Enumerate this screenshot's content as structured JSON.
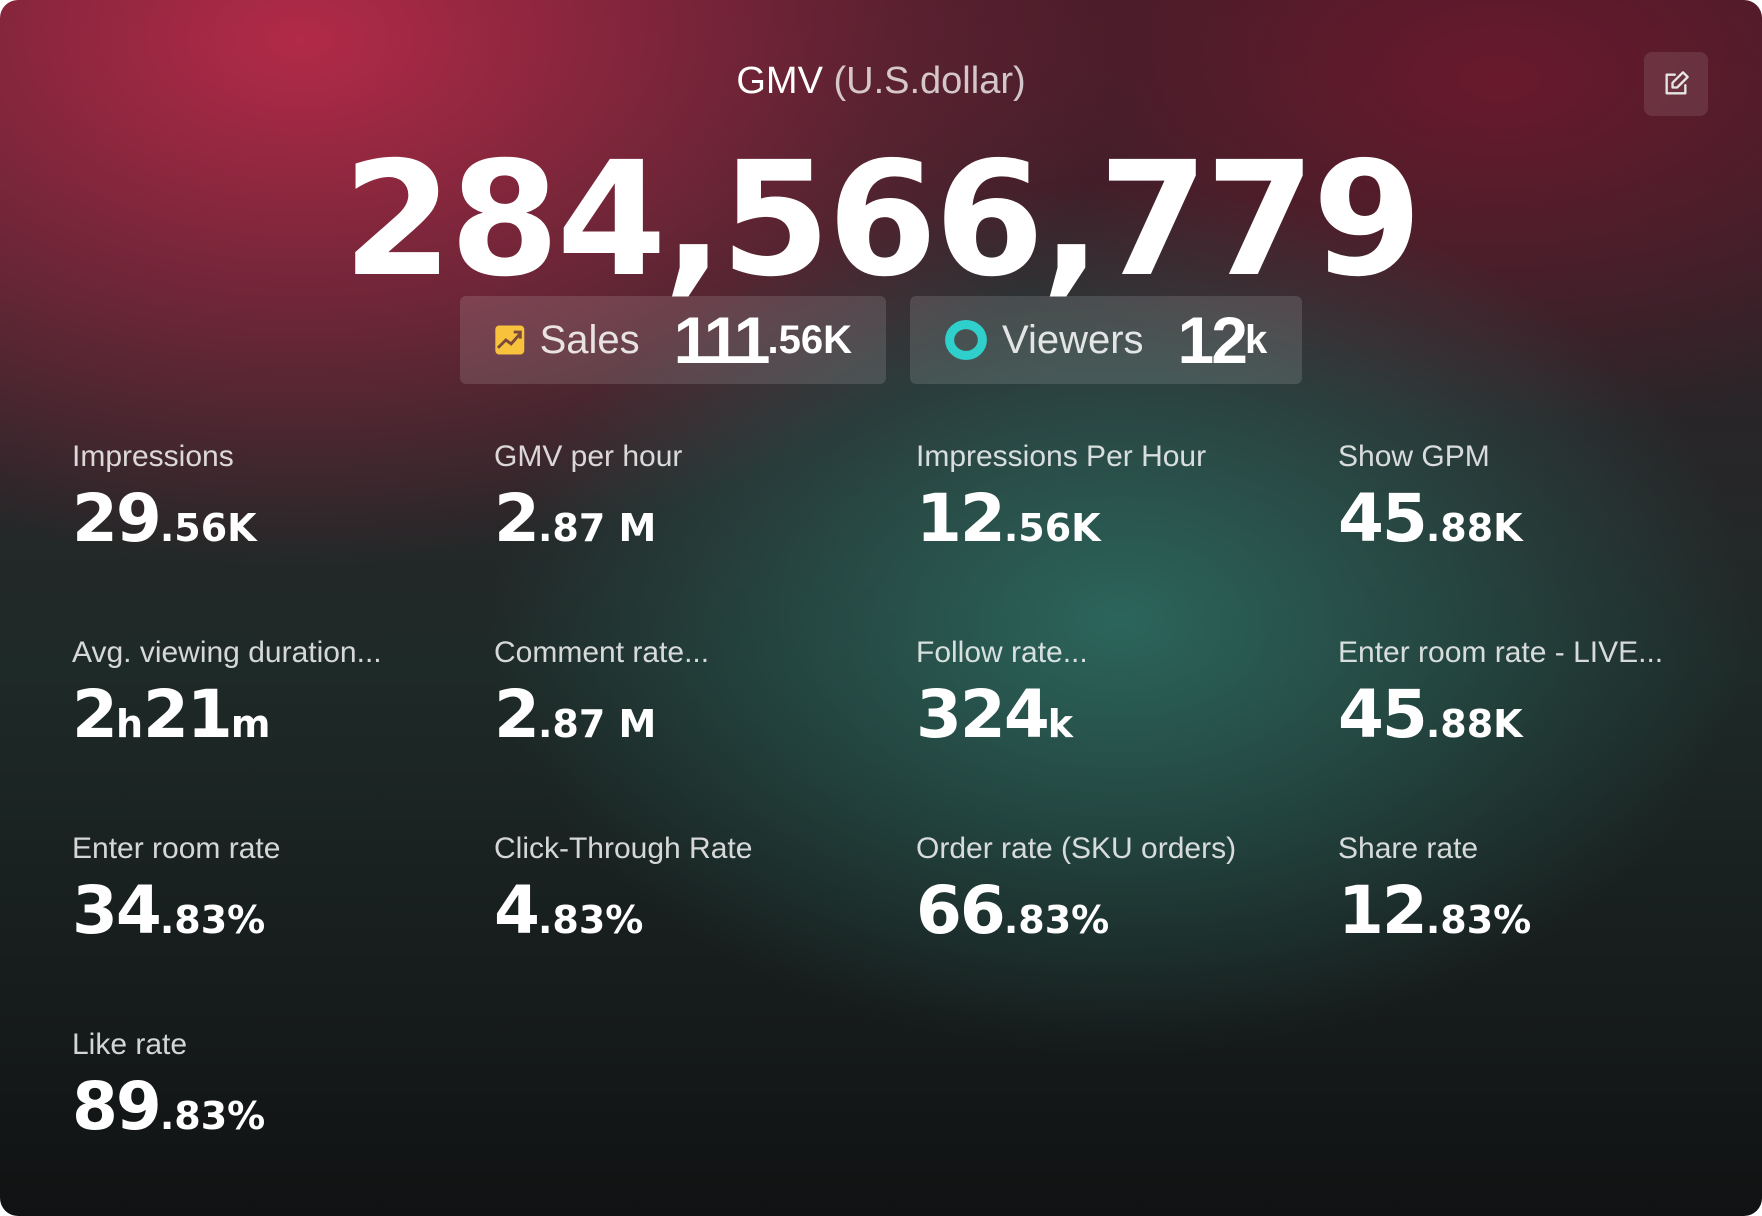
{
  "header": {
    "title": "GMV",
    "unit": "(U.S.dollar)",
    "value": "284,566,779",
    "edit_icon": "edit-icon"
  },
  "chips": [
    {
      "label": "Sales",
      "value": "111",
      "suffix": ".56K",
      "icon": "trending-up-icon",
      "icon_color": "#f9c23c"
    },
    {
      "label": "Viewers",
      "value": "12",
      "suffix": "k",
      "icon": "eye-icon",
      "icon_color": "#2fcfcc"
    }
  ],
  "metrics": [
    {
      "label": "Impressions",
      "main": "29",
      "suffix": ".56K"
    },
    {
      "label": "GMV per hour",
      "main": "2",
      "suffix": ".87 M"
    },
    {
      "label": "Impressions Per Hour",
      "main": "12",
      "suffix": ".56K"
    },
    {
      "label": "Show GPM",
      "main": "45",
      "suffix": ".88K"
    },
    {
      "label": "Avg. viewing duration...",
      "main": "2",
      "suffix": "h",
      "main2": "21",
      "suffix2": "m"
    },
    {
      "label": "Comment rate...",
      "main": "2",
      "suffix": ".87 M"
    },
    {
      "label": "Follow rate...",
      "main": "324",
      "suffix": "k"
    },
    {
      "label": "Enter room rate - LIVE...",
      "main": "45",
      "suffix": ".88K"
    },
    {
      "label": "Enter room rate",
      "main": "34",
      "suffix": ".83%"
    },
    {
      "label": "Click-Through Rate",
      "main": "4",
      "suffix": ".83%"
    },
    {
      "label": "Order rate (SKU orders)",
      "main": "66",
      "suffix": ".83%"
    },
    {
      "label": "Share rate",
      "main": "12",
      "suffix": ".83%"
    },
    {
      "label": "Like rate",
      "main": "89",
      "suffix": ".83%"
    }
  ]
}
